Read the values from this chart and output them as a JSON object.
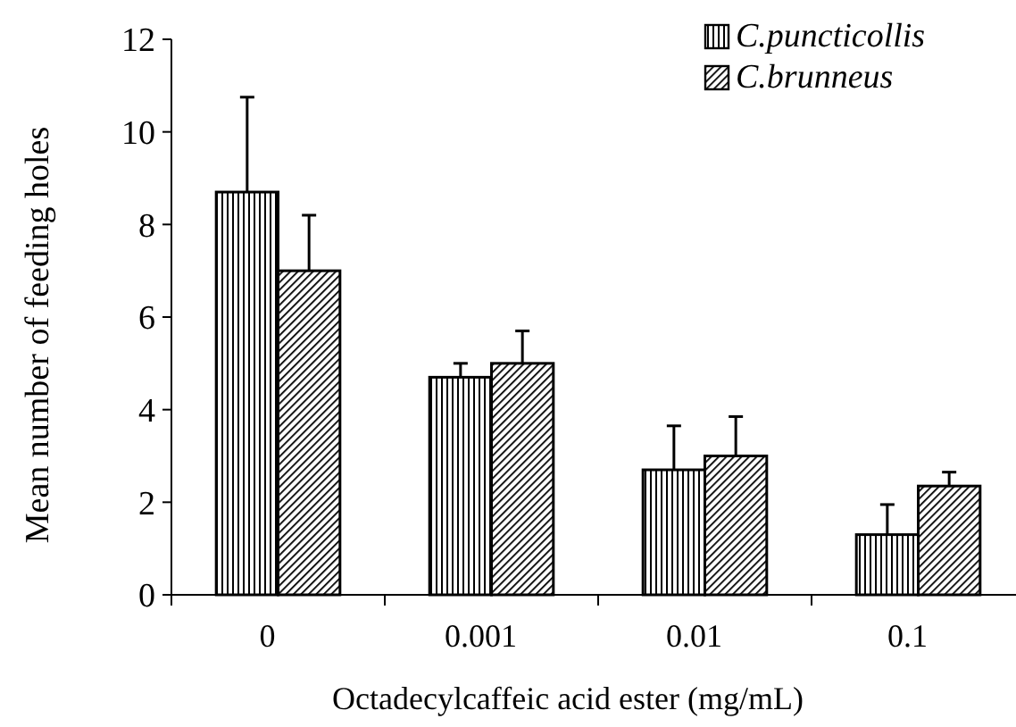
{
  "chart_data": {
    "type": "bar",
    "xlabel": "Octadecylcaffeic acid ester (mg/mL)",
    "ylabel": "Mean number of feeding holes",
    "categories": [
      "0",
      "0.001",
      "0.01",
      "0.1"
    ],
    "series": [
      {
        "name": "C.puncticollis",
        "color": "#000000",
        "values": [
          8.7,
          4.7,
          2.7,
          1.3
        ],
        "errors": [
          [
            8.7,
            10.75
          ],
          [
            4.7,
            5.0
          ],
          [
            2.7,
            3.65
          ],
          [
            1.3,
            1.95
          ]
        ]
      },
      {
        "name": "C.brunneus",
        "color": "#000000",
        "values": [
          7.0,
          5.0,
          3.0,
          2.35
        ],
        "errors": [
          [
            7.0,
            8.2
          ],
          [
            5.0,
            5.7
          ],
          [
            3.0,
            3.85
          ],
          [
            2.35,
            2.65
          ]
        ]
      }
    ],
    "ylim": [
      0,
      12
    ],
    "yticks": [
      0,
      2,
      4,
      6,
      8,
      10,
      12
    ],
    "grid": false,
    "legend": "top right"
  }
}
